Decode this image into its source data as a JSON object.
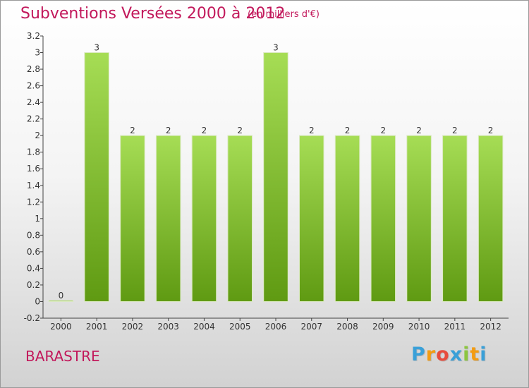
{
  "title": "Subventions Versées 2000 à 2012",
  "unit": "(en milliers d'€)",
  "commune": "BARASTRE",
  "logo": {
    "letters": [
      "P",
      "r",
      "o",
      "x",
      "i",
      "t",
      "i"
    ],
    "colors": [
      "#3aa0d8",
      "#f39c12",
      "#e74c3c",
      "#3aa0d8",
      "#8cc63f",
      "#f39c12",
      "#3aa0d8"
    ]
  },
  "colors": {
    "bar_top": "#a6dd55",
    "bar_bottom": "#5f9a12",
    "accent": "#c2185b"
  },
  "chart_data": {
    "type": "bar",
    "categories": [
      "2000",
      "2001",
      "2002",
      "2003",
      "2004",
      "2005",
      "2006",
      "2007",
      "2008",
      "2009",
      "2010",
      "2011",
      "2012"
    ],
    "values": [
      0,
      3,
      2,
      2,
      2,
      2,
      3,
      2,
      2,
      2,
      2,
      2,
      2
    ],
    "data_labels": [
      "0",
      "3",
      "2",
      "2",
      "2",
      "2",
      "3",
      "2",
      "2",
      "2",
      "2",
      "2",
      "2"
    ],
    "ylim": [
      -0.2,
      3.2
    ],
    "yticks": [
      "-0.2",
      "0",
      "0.2",
      "0.4",
      "0.6",
      "0.8",
      "1",
      "1.2",
      "1.4",
      "1.6",
      "1.8",
      "2",
      "2.2",
      "2.4",
      "2.6",
      "2.8",
      "3",
      "3.2"
    ],
    "ytick_values": [
      -0.2,
      0,
      0.2,
      0.4,
      0.6,
      0.8,
      1,
      1.2,
      1.4,
      1.6,
      1.8,
      2,
      2.2,
      2.4,
      2.6,
      2.8,
      3,
      3.2
    ],
    "grid": false,
    "legend": "none"
  }
}
